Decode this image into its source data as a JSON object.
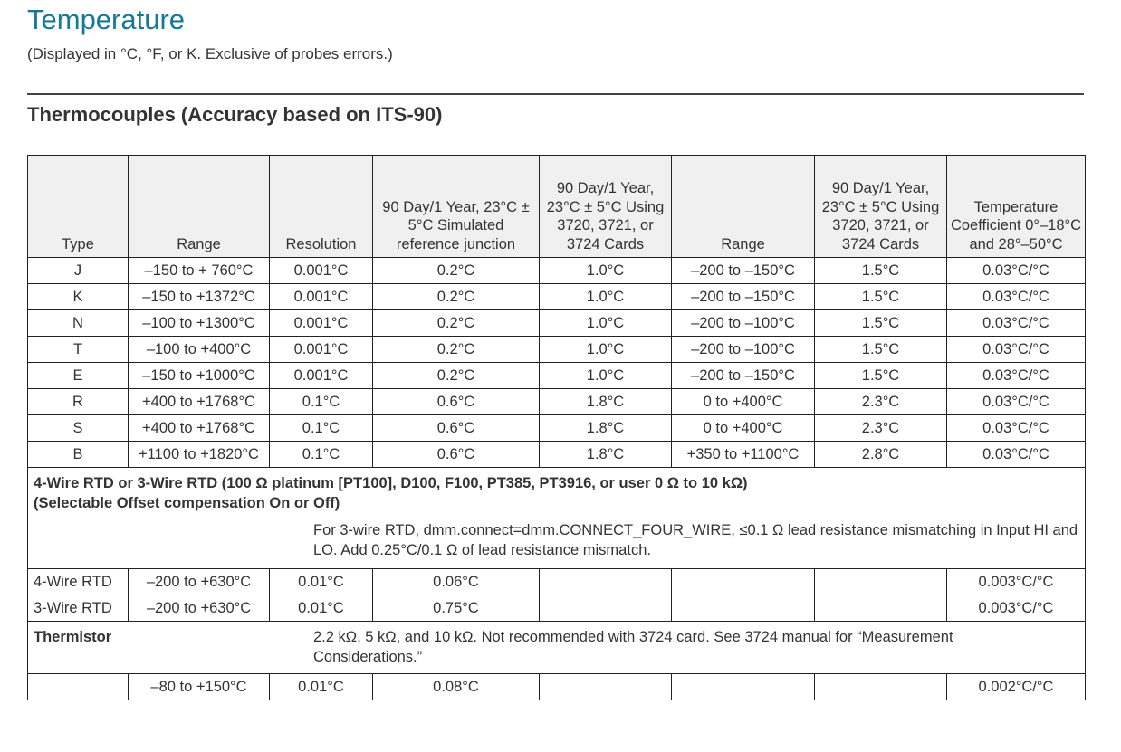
{
  "title": "Temperature",
  "subtitle": "(Displayed in °C, °F, or K. Exclusive of probes errors.)",
  "section": "Thermocouples (Accuracy based on ITS-90)",
  "headers": [
    "Type",
    "Range",
    "Resolution",
    "90 Day/1 Year, 23°C ± 5°C Simulated reference junction",
    "90 Day/1 Year, 23°C ± 5°C Using 3720, 3721, or 3724 Cards",
    "Range",
    "90 Day/1 Year, 23°C ± 5°C Using 3720, 3721, or 3724 Cards",
    "Temperature Coefficient 0°–18°C and 28°–50°C"
  ],
  "thermocouples": [
    [
      "J",
      "–150 to +  760°C",
      "0.001°C",
      "0.2°C",
      "1.0°C",
      "–200 to –150°C",
      "1.5°C",
      "0.03°C/°C"
    ],
    [
      "K",
      "–150 to +1372°C",
      "0.001°C",
      "0.2°C",
      "1.0°C",
      "–200 to –150°C",
      "1.5°C",
      "0.03°C/°C"
    ],
    [
      "N",
      "–100 to +1300°C",
      "0.001°C",
      "0.2°C",
      "1.0°C",
      "–200 to –100°C",
      "1.5°C",
      "0.03°C/°C"
    ],
    [
      "T",
      "–100 to +400°C",
      "0.001°C",
      "0.2°C",
      "1.0°C",
      "–200 to –100°C",
      "1.5°C",
      "0.03°C/°C"
    ],
    [
      "E",
      "–150 to +1000°C",
      "0.001°C",
      "0.2°C",
      "1.0°C",
      "–200 to –150°C",
      "1.5°C",
      "0.03°C/°C"
    ],
    [
      "R",
      "+400 to +1768°C",
      "0.1°C",
      "0.6°C",
      "1.8°C",
      "0 to +400°C",
      "2.3°C",
      "0.03°C/°C"
    ],
    [
      "S",
      "+400 to +1768°C",
      "0.1°C",
      "0.6°C",
      "1.8°C",
      "0 to +400°C",
      "2.3°C",
      "0.03°C/°C"
    ],
    [
      "B",
      "+1100 to +1820°C",
      "0.1°C",
      "0.6°C",
      "1.8°C",
      "+350 to +1100°C",
      "2.8°C",
      "0.03°C/°C"
    ]
  ],
  "rtd": {
    "heading": "4-Wire RTD or 3-Wire RTD (100 Ω platinum [PT100], D100, F100, PT385, PT3916, or user 0 Ω to 10 kΩ)",
    "subheading": "(Selectable Offset compensation On or Off)",
    "note": "For 3-wire RTD, dmm.connect=dmm.CONNECT_FOUR_WIRE, ≤0.1 Ω lead resistance mismatching in Input HI and LO. Add 0.25°C/0.1 Ω of lead resistance mismatch.",
    "rows": [
      [
        "4-Wire RTD",
        "–200 to +630°C",
        "0.01°C",
        "0.06°C",
        "",
        "",
        "",
        "0.003°C/°C"
      ],
      [
        "3-Wire RTD",
        "–200 to +630°C",
        "0.01°C",
        "0.75°C",
        "",
        "",
        "",
        "0.003°C/°C"
      ]
    ]
  },
  "thermistor": {
    "label": "Thermistor",
    "note": "2.2 kΩ, 5 kΩ, and 10 kΩ. Not recommended with 3724 card. See 3724 manual for “Measurement Considerations.”",
    "rows": [
      [
        "",
        "–80 to +150°C",
        "0.01°C",
        "0.08°C",
        "",
        "",
        "",
        "0.002°C/°C"
      ]
    ]
  }
}
